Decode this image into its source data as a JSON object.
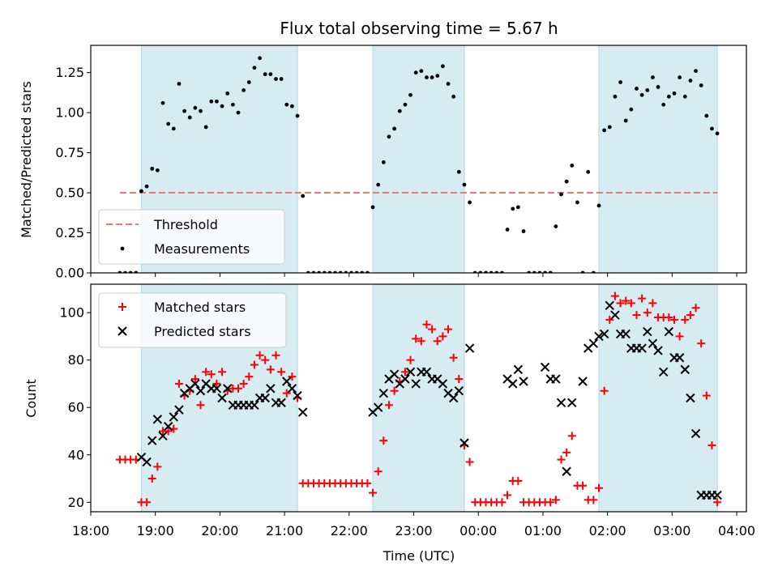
{
  "chart_data": [
    {
      "type": "scatter",
      "title": "Flux total observing time = 5.67 h",
      "xlabel": "",
      "ylabel": "Matched/Predicted stars",
      "xlim": [
        "18:00",
        "04:09"
      ],
      "ylim": [
        0,
        1.42
      ],
      "yticks": [
        0.0,
        0.25,
        0.5,
        0.75,
        1.0,
        1.25
      ],
      "ytick_labels": [
        "0.00",
        "0.25",
        "0.50",
        "0.75",
        "1.00",
        "1.25"
      ],
      "shaded_intervals": [
        [
          "18:47",
          "21:12"
        ],
        [
          "22:22",
          "23:47"
        ],
        [
          "01:52",
          "03:42"
        ]
      ],
      "threshold": {
        "name": "Threshold",
        "value": 0.5,
        "x_range": [
          "18:27",
          "03:42"
        ],
        "color": "#f07575"
      },
      "legend": {
        "location": "lower-left",
        "entries": [
          "Threshold",
          "Measurements"
        ]
      },
      "series": [
        {
          "name": "Measurements",
          "color": "#000000",
          "marker": "dot",
          "x": [
            "18:27",
            "18:32",
            "18:37",
            "18:42",
            "18:47",
            "18:52",
            "18:57",
            "19:02",
            "19:07",
            "19:12",
            "19:17",
            "19:22",
            "19:27",
            "19:32",
            "19:37",
            "19:42",
            "19:47",
            "19:52",
            "19:57",
            "20:02",
            "20:07",
            "20:12",
            "20:17",
            "20:22",
            "20:27",
            "20:32",
            "20:37",
            "20:42",
            "20:47",
            "20:52",
            "20:57",
            "21:02",
            "21:07",
            "21:12",
            "21:17",
            "21:22",
            "21:27",
            "21:32",
            "21:37",
            "21:42",
            "21:47",
            "21:52",
            "21:57",
            "22:02",
            "22:07",
            "22:12",
            "22:17",
            "22:22",
            "22:27",
            "22:32",
            "22:37",
            "22:42",
            "22:47",
            "22:52",
            "22:57",
            "23:02",
            "23:07",
            "23:12",
            "23:17",
            "23:22",
            "23:27",
            "23:32",
            "23:37",
            "23:42",
            "23:47",
            "23:52",
            "23:57",
            "00:02",
            "00:07",
            "00:12",
            "00:17",
            "00:22",
            "00:27",
            "00:32",
            "00:37",
            "00:42",
            "00:47",
            "00:52",
            "00:57",
            "01:02",
            "01:07",
            "01:12",
            "01:17",
            "01:22",
            "01:27",
            "01:32",
            "01:37",
            "01:42",
            "01:47",
            "01:52",
            "01:57",
            "02:02",
            "02:07",
            "02:12",
            "02:17",
            "02:22",
            "02:27",
            "02:32",
            "02:37",
            "02:42",
            "02:47",
            "02:52",
            "02:57",
            "03:02",
            "03:07",
            "03:12",
            "03:17",
            "03:22",
            "03:27",
            "03:32",
            "03:37",
            "03:42"
          ],
          "y": [
            0.0,
            0.0,
            0.0,
            0.0,
            0.51,
            0.54,
            0.65,
            0.64,
            1.06,
            0.93,
            0.9,
            1.18,
            1.01,
            0.97,
            1.03,
            1.01,
            0.91,
            1.07,
            1.07,
            1.04,
            1.12,
            1.05,
            1.0,
            1.14,
            1.19,
            1.28,
            1.34,
            1.24,
            1.24,
            1.21,
            1.21,
            1.05,
            1.04,
            0.98,
            0.48,
            0.0,
            0.0,
            0.0,
            0.0,
            0.0,
            0.0,
            0.0,
            0.0,
            0.0,
            0.0,
            0.0,
            0.0,
            0.41,
            0.55,
            0.69,
            0.85,
            0.9,
            1.01,
            1.05,
            1.11,
            1.25,
            1.26,
            1.22,
            1.22,
            1.23,
            1.29,
            1.18,
            1.1,
            0.63,
            0.55,
            0.44,
            0.0,
            0.0,
            0.0,
            0.0,
            0.0,
            0.0,
            0.27,
            0.4,
            0.41,
            0.26,
            0.0,
            0.0,
            0.0,
            0.0,
            0.0,
            0.29,
            0.49,
            0.57,
            0.67,
            0.44,
            0.0,
            0.63,
            0.0,
            0.42,
            0.89,
            0.91,
            1.1,
            1.19,
            0.95,
            1.02,
            1.15,
            1.11,
            1.14,
            1.22,
            1.16,
            1.05,
            1.1,
            1.12,
            1.22,
            1.1,
            1.2,
            1.26,
            1.17,
            0.98,
            0.9,
            0.87
          ]
        }
      ]
    },
    {
      "type": "scatter",
      "title": "",
      "xlabel": "Time (UTC)",
      "ylabel": "Count",
      "xlim": [
        "18:00",
        "04:09"
      ],
      "ylim": [
        16,
        112
      ],
      "yticks": [
        20,
        40,
        60,
        80,
        100
      ],
      "ytick_labels": [
        "20",
        "40",
        "60",
        "80",
        "100"
      ],
      "xticks": [
        "18:00",
        "19:00",
        "20:00",
        "21:00",
        "22:00",
        "23:00",
        "00:00",
        "01:00",
        "02:00",
        "03:00",
        "04:00"
      ],
      "shaded_intervals": [
        [
          "18:47",
          "21:12"
        ],
        [
          "22:22",
          "23:47"
        ],
        [
          "01:52",
          "03:42"
        ]
      ],
      "legend": {
        "location": "upper-left",
        "entries": [
          "Matched stars",
          "Predicted stars"
        ]
      },
      "series": [
        {
          "name": "Matched stars",
          "color": "#ff0000",
          "marker": "plus",
          "x": [
            "18:27",
            "18:32",
            "18:37",
            "18:42",
            "18:47",
            "18:52",
            "18:57",
            "19:02",
            "19:07",
            "19:12",
            "19:17",
            "19:22",
            "19:27",
            "19:32",
            "19:37",
            "19:42",
            "19:47",
            "19:52",
            "19:57",
            "20:02",
            "20:07",
            "20:12",
            "20:17",
            "20:22",
            "20:27",
            "20:32",
            "20:37",
            "20:42",
            "20:47",
            "20:52",
            "20:57",
            "21:02",
            "21:07",
            "21:12",
            "21:17",
            "21:22",
            "21:27",
            "21:32",
            "21:37",
            "21:42",
            "21:47",
            "21:52",
            "21:57",
            "22:02",
            "22:07",
            "22:12",
            "22:17",
            "22:22",
            "22:27",
            "22:32",
            "22:37",
            "22:42",
            "22:47",
            "22:52",
            "22:57",
            "23:02",
            "23:07",
            "23:12",
            "23:17",
            "23:22",
            "23:27",
            "23:32",
            "23:37",
            "23:42",
            "23:47",
            "23:52",
            "23:57",
            "00:02",
            "00:07",
            "00:12",
            "00:17",
            "00:22",
            "00:27",
            "00:32",
            "00:37",
            "00:42",
            "00:47",
            "00:52",
            "00:57",
            "01:02",
            "01:07",
            "01:12",
            "01:17",
            "01:22",
            "01:27",
            "01:32",
            "01:37",
            "01:42",
            "01:47",
            "01:52",
            "01:57",
            "02:02",
            "02:07",
            "02:12",
            "02:17",
            "02:22",
            "02:27",
            "02:32",
            "02:37",
            "02:42",
            "02:47",
            "02:52",
            "02:57",
            "03:02",
            "03:07",
            "03:12",
            "03:17",
            "03:22",
            "03:27",
            "03:32",
            "03:37",
            "03:42"
          ],
          "y": [
            38,
            38,
            38,
            38,
            20,
            20,
            30,
            35,
            50,
            50,
            51,
            70,
            65,
            67,
            72,
            61,
            75,
            74,
            70,
            75,
            67,
            68,
            68,
            70,
            73,
            78,
            82,
            80,
            76,
            82,
            75,
            66,
            73,
            64,
            28,
            28,
            28,
            28,
            28,
            28,
            28,
            28,
            28,
            28,
            28,
            28,
            28,
            24,
            33,
            46,
            61,
            67,
            71,
            75,
            80,
            89,
            88,
            95,
            93,
            88,
            90,
            93,
            81,
            72,
            44,
            37,
            20,
            20,
            20,
            20,
            20,
            20,
            23,
            29,
            29,
            20,
            20,
            20,
            20,
            20,
            20,
            21,
            38,
            41,
            48,
            27,
            27,
            21,
            21,
            26,
            67,
            97,
            107,
            104,
            105,
            104,
            99,
            106,
            100,
            104,
            98,
            98,
            98,
            97,
            90,
            97,
            99,
            102,
            87,
            65,
            44,
            20
          ]
        },
        {
          "name": "Predicted stars",
          "color": "#000000",
          "marker": "x",
          "x": [
            "18:47",
            "18:52",
            "18:57",
            "19:02",
            "19:07",
            "19:12",
            "19:17",
            "19:22",
            "19:27",
            "19:32",
            "19:37",
            "19:42",
            "19:47",
            "19:52",
            "19:57",
            "20:02",
            "20:07",
            "20:12",
            "20:17",
            "20:22",
            "20:27",
            "20:32",
            "20:37",
            "20:42",
            "20:47",
            "20:52",
            "20:57",
            "21:02",
            "21:07",
            "21:12",
            "21:17",
            "22:22",
            "22:27",
            "22:32",
            "22:37",
            "22:42",
            "22:47",
            "22:52",
            "22:57",
            "23:02",
            "23:07",
            "23:12",
            "23:17",
            "23:22",
            "23:27",
            "23:32",
            "23:37",
            "23:42",
            "23:47",
            "23:52",
            "00:27",
            "00:32",
            "00:37",
            "00:42",
            "01:02",
            "01:07",
            "01:12",
            "01:17",
            "01:22",
            "01:27",
            "01:37",
            "01:42",
            "01:47",
            "01:52",
            "01:57",
            "02:02",
            "02:07",
            "02:12",
            "02:17",
            "02:22",
            "02:27",
            "02:32",
            "02:37",
            "02:42",
            "02:47",
            "02:52",
            "02:57",
            "03:02",
            "03:07",
            "03:12",
            "03:17",
            "03:22",
            "03:27",
            "03:32",
            "03:37",
            "03:42"
          ],
          "y": [
            39,
            37,
            46,
            55,
            48,
            52,
            56,
            59,
            66,
            68,
            70,
            67,
            70,
            68,
            68,
            64,
            68,
            61,
            61,
            61,
            61,
            61,
            64,
            64,
            68,
            62,
            62,
            71,
            68,
            65,
            58,
            58,
            60,
            66,
            72,
            74,
            70,
            72,
            75,
            70,
            75,
            75,
            72,
            72,
            70,
            66,
            64,
            67,
            45,
            85,
            72,
            70,
            76,
            71,
            77,
            72,
            72,
            62,
            33,
            62,
            71,
            85,
            87,
            90,
            91,
            103,
            99,
            91,
            91,
            85,
            85,
            85,
            92,
            87,
            84,
            75,
            92,
            81,
            81,
            76,
            64,
            49,
            23,
            23,
            23,
            23
          ]
        }
      ]
    }
  ]
}
